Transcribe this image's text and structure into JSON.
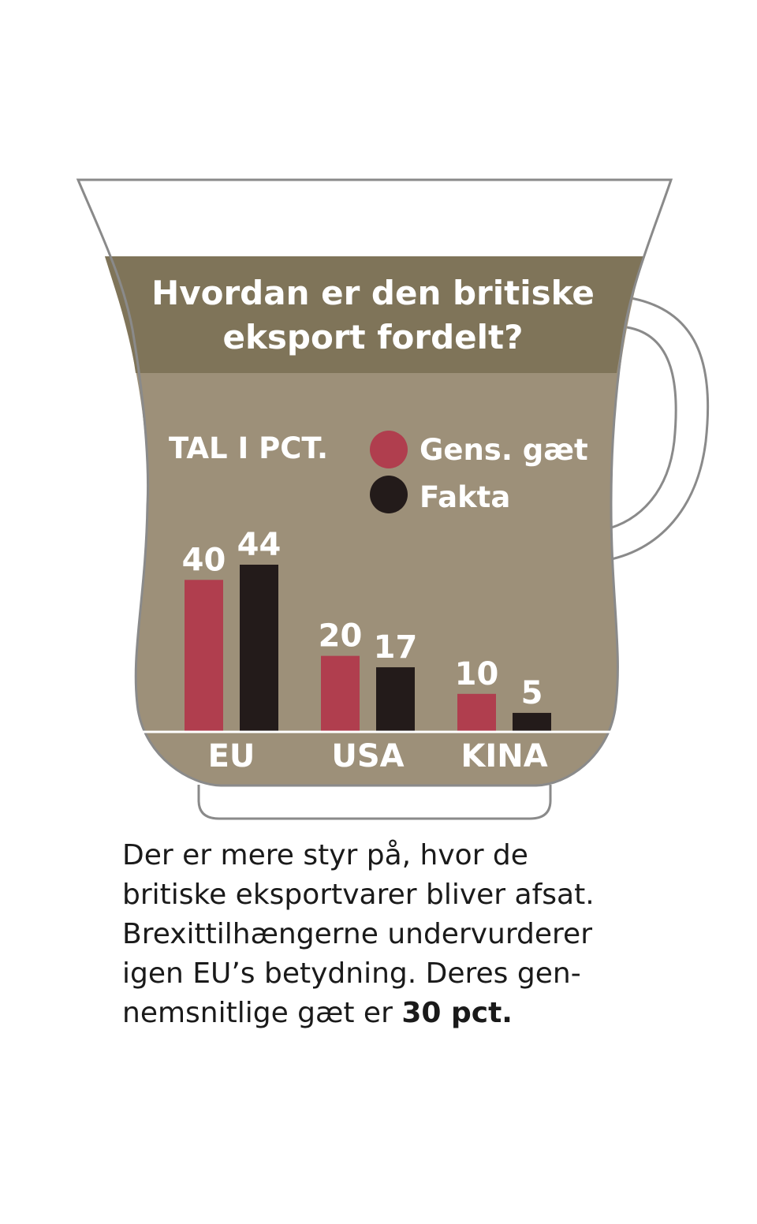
{
  "title": [
    "Hvordan er den britiske",
    "eksport fordelt?"
  ],
  "unit_label": "TAL I PCT.",
  "colors": {
    "guess": "#b03e4e",
    "fact": "#231b1a",
    "band": "#7f7459",
    "body": "#9d9079",
    "outline": "#8a8a8a"
  },
  "chart_data": {
    "type": "bar",
    "categories": [
      "EU",
      "USA",
      "KINA"
    ],
    "series": [
      {
        "name": "Gens. gæt",
        "values": [
          40,
          20,
          10
        ]
      },
      {
        "name": "Fakta",
        "values": [
          44,
          17,
          5
        ]
      }
    ],
    "ylim": [
      0,
      44
    ],
    "grid": false,
    "legend_position": "top-right"
  },
  "caption": {
    "lines": [
      "Der er mere styr på, hvor de",
      "britiske eksportvarer bliver afsat.",
      "Brexittilhængerne undervurderer",
      "igen EU’s betydning. Deres gen-"
    ],
    "last_line": "nemsnitlige gæt er ",
    "emphasis": "30 pct."
  }
}
